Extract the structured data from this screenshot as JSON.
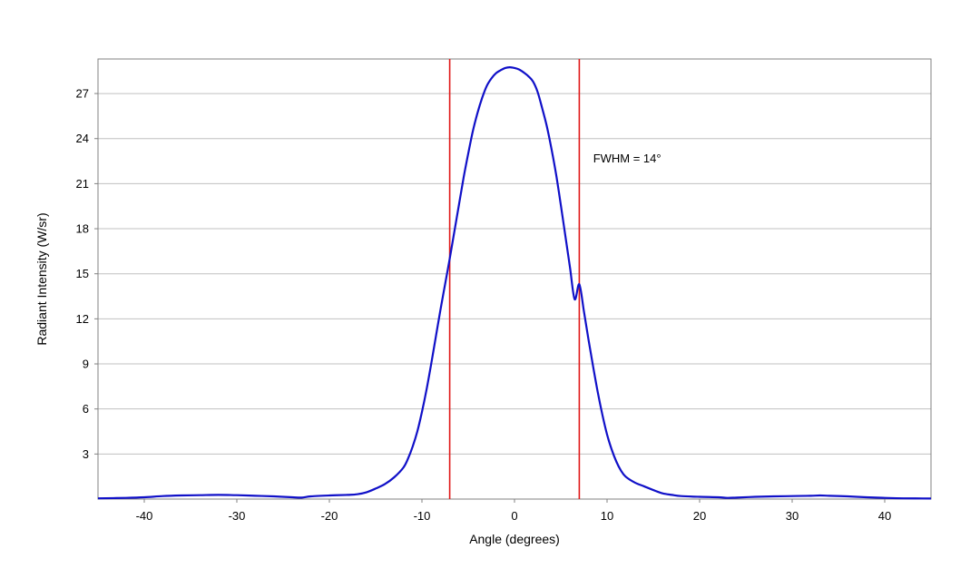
{
  "chart_data": {
    "type": "line",
    "title": "",
    "xlabel": "Angle (degrees)",
    "ylabel": "Radiant Intensity (W/sr)",
    "xlim": [
      -45,
      45
    ],
    "ylim": [
      0,
      29.3
    ],
    "x_ticks": [
      -40,
      -30,
      -20,
      -10,
      0,
      10,
      20,
      30,
      40
    ],
    "y_ticks": [
      3,
      6,
      9,
      12,
      15,
      18,
      21,
      24,
      27
    ],
    "grid": "horizontal",
    "legend": "none",
    "colors": {
      "curve": "#1010c8",
      "markers": "#e01818",
      "grid": "#c0c0c0",
      "frame": "#808080"
    },
    "annotation": {
      "text": "FWHM = 14°",
      "x": 8.5,
      "y": 22.4
    },
    "vertical_markers": [
      -7,
      7
    ],
    "series": [
      {
        "x": [
          -45,
          -42,
          -40,
          -38,
          -36,
          -34,
          -32,
          -30,
          -28,
          -26,
          -24,
          -23,
          -22,
          -20,
          -18,
          -17,
          -16,
          -15,
          -14,
          -13,
          -12,
          -11.5,
          -11,
          -10.5,
          -10,
          -9.5,
          -9,
          -8.5,
          -8,
          -7.5,
          -7,
          -6.5,
          -6,
          -5.5,
          -5,
          -4.5,
          -4,
          -3.5,
          -3,
          -2.5,
          -2,
          -1.5,
          -1,
          -0.5,
          0,
          0.5,
          1,
          1.5,
          2,
          2.5,
          3,
          3.5,
          4,
          4.5,
          5,
          5.5,
          6,
          6.5,
          7,
          7.5,
          8,
          8.5,
          9,
          9.5,
          10,
          10.5,
          11,
          11.5,
          12,
          13,
          14,
          15,
          16,
          17,
          18,
          20,
          22,
          23,
          24,
          26,
          28,
          30,
          32,
          33,
          34,
          36,
          38,
          40,
          42,
          45
        ],
        "y": [
          0.05,
          0.08,
          0.12,
          0.2,
          0.24,
          0.26,
          0.28,
          0.26,
          0.22,
          0.18,
          0.12,
          0.1,
          0.18,
          0.24,
          0.28,
          0.32,
          0.45,
          0.7,
          1.0,
          1.45,
          2.1,
          2.7,
          3.5,
          4.5,
          5.8,
          7.3,
          9.0,
          10.8,
          12.6,
          14.3,
          16.0,
          17.8,
          19.6,
          21.4,
          23.0,
          24.5,
          25.7,
          26.7,
          27.5,
          28.0,
          28.35,
          28.55,
          28.7,
          28.75,
          28.7,
          28.6,
          28.4,
          28.15,
          27.8,
          27.1,
          26.0,
          24.8,
          23.3,
          21.6,
          19.6,
          17.5,
          15.4,
          13.3,
          14.3,
          12.5,
          10.6,
          8.8,
          7.1,
          5.6,
          4.3,
          3.3,
          2.5,
          1.9,
          1.5,
          1.1,
          0.85,
          0.6,
          0.38,
          0.28,
          0.2,
          0.15,
          0.12,
          0.08,
          0.1,
          0.15,
          0.18,
          0.2,
          0.22,
          0.24,
          0.22,
          0.18,
          0.12,
          0.08,
          0.05,
          0.04
        ]
      }
    ]
  }
}
